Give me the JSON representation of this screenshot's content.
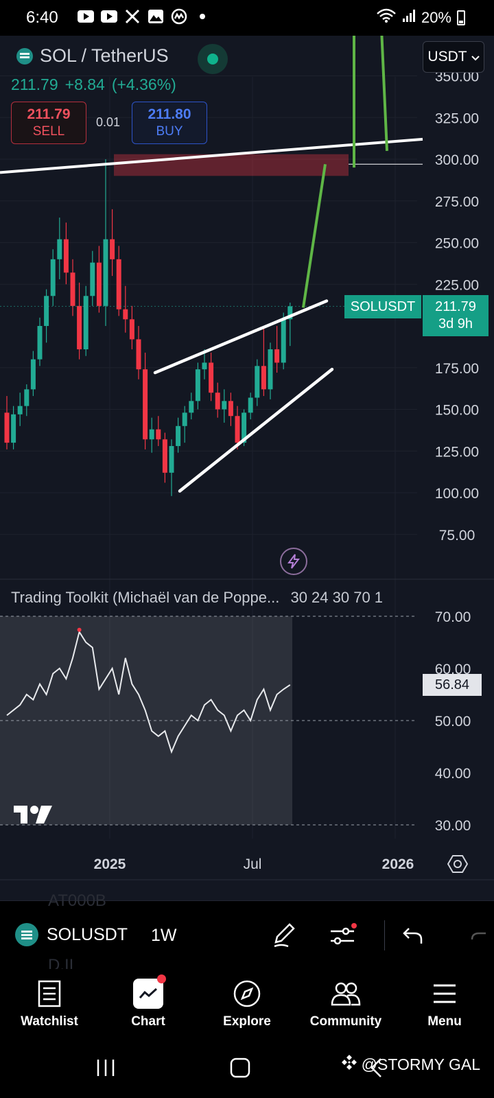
{
  "status_bar": {
    "time": "6:40",
    "battery": "20%",
    "left_icons": [
      "youtube-icon",
      "youtube-icon",
      "x-icon",
      "gallery-icon",
      "coinmarketcap-icon",
      "dot-icon"
    ],
    "right_icons": [
      "wifi-icon",
      "signal-icon",
      "battery-icon"
    ]
  },
  "header": {
    "symbol_title": "SOL / TetherUS",
    "last_price": "211.79",
    "change": "+8.84",
    "change_pct": "(+4.36%)",
    "sell_price": "211.79",
    "sell_label": "SELL",
    "buy_price": "211.80",
    "buy_label": "BUY",
    "spread": "0.01",
    "currency": "USDT"
  },
  "price_axis": {
    "ticks": [
      "350.00",
      "325.00",
      "300.00",
      "275.00",
      "250.00",
      "225.00",
      "175.00",
      "150.00",
      "125.00",
      "100.00",
      "75.00"
    ],
    "symbol_tag": "SOLUSDT",
    "current_price": "211.79",
    "countdown": "3d 9h"
  },
  "indicator": {
    "label": "Trading Toolkit (Michaël van de Poppe...",
    "params": "30 24 30 70 1",
    "ticks": [
      "70.00",
      "60.00",
      "50.00",
      "40.00",
      "30.00"
    ],
    "current_value": "56.84"
  },
  "time_axis": {
    "labels": [
      "2025",
      "Jul",
      "2026"
    ]
  },
  "chart_data": [
    {
      "type": "candlestick",
      "title": "SOL / TetherUS",
      "interval": "1W",
      "ylim": [
        75,
        350
      ],
      "last": 211.79,
      "candles": [
        {
          "o": 148,
          "h": 158,
          "l": 126,
          "c": 130
        },
        {
          "o": 130,
          "h": 152,
          "l": 126,
          "c": 147
        },
        {
          "o": 147,
          "h": 160,
          "l": 140,
          "c": 152
        },
        {
          "o": 152,
          "h": 165,
          "l": 146,
          "c": 162
        },
        {
          "o": 162,
          "h": 185,
          "l": 158,
          "c": 180
        },
        {
          "o": 180,
          "h": 205,
          "l": 176,
          "c": 200
        },
        {
          "o": 200,
          "h": 222,
          "l": 190,
          "c": 218
        },
        {
          "o": 218,
          "h": 246,
          "l": 212,
          "c": 240
        },
        {
          "o": 240,
          "h": 265,
          "l": 228,
          "c": 252
        },
        {
          "o": 252,
          "h": 262,
          "l": 225,
          "c": 232
        },
        {
          "o": 232,
          "h": 240,
          "l": 206,
          "c": 212
        },
        {
          "o": 212,
          "h": 226,
          "l": 180,
          "c": 186
        },
        {
          "o": 186,
          "h": 224,
          "l": 182,
          "c": 218
        },
        {
          "o": 218,
          "h": 245,
          "l": 212,
          "c": 238
        },
        {
          "o": 238,
          "h": 248,
          "l": 208,
          "c": 212
        },
        {
          "o": 212,
          "h": 300,
          "l": 200,
          "c": 252
        },
        {
          "o": 252,
          "h": 270,
          "l": 230,
          "c": 240
        },
        {
          "o": 240,
          "h": 248,
          "l": 206,
          "c": 210
        },
        {
          "o": 210,
          "h": 224,
          "l": 196,
          "c": 204
        },
        {
          "o": 204,
          "h": 212,
          "l": 186,
          "c": 192
        },
        {
          "o": 192,
          "h": 200,
          "l": 168,
          "c": 174
        },
        {
          "o": 174,
          "h": 184,
          "l": 126,
          "c": 132
        },
        {
          "o": 132,
          "h": 145,
          "l": 124,
          "c": 138
        },
        {
          "o": 138,
          "h": 146,
          "l": 128,
          "c": 132
        },
        {
          "o": 132,
          "h": 136,
          "l": 106,
          "c": 112
        },
        {
          "o": 112,
          "h": 132,
          "l": 98,
          "c": 128
        },
        {
          "o": 128,
          "h": 145,
          "l": 124,
          "c": 140
        },
        {
          "o": 140,
          "h": 152,
          "l": 130,
          "c": 148
        },
        {
          "o": 148,
          "h": 160,
          "l": 144,
          "c": 155
        },
        {
          "o": 155,
          "h": 178,
          "l": 150,
          "c": 174
        },
        {
          "o": 174,
          "h": 186,
          "l": 168,
          "c": 178
        },
        {
          "o": 178,
          "h": 184,
          "l": 155,
          "c": 160
        },
        {
          "o": 160,
          "h": 166,
          "l": 145,
          "c": 150
        },
        {
          "o": 150,
          "h": 162,
          "l": 142,
          "c": 155
        },
        {
          "o": 155,
          "h": 160,
          "l": 140,
          "c": 146
        },
        {
          "o": 146,
          "h": 152,
          "l": 126,
          "c": 130
        },
        {
          "o": 130,
          "h": 150,
          "l": 128,
          "c": 148
        },
        {
          "o": 148,
          "h": 160,
          "l": 144,
          "c": 157
        },
        {
          "o": 157,
          "h": 180,
          "l": 152,
          "c": 176
        },
        {
          "o": 176,
          "h": 200,
          "l": 158,
          "c": 162
        },
        {
          "o": 162,
          "h": 190,
          "l": 156,
          "c": 186
        },
        {
          "o": 186,
          "h": 200,
          "l": 172,
          "c": 178
        },
        {
          "o": 178,
          "h": 208,
          "l": 174,
          "c": 204
        },
        {
          "o": 204,
          "h": 214,
          "l": 188,
          "c": 211.79
        }
      ]
    },
    {
      "type": "line",
      "title": "Trading Toolkit (Michaël van de Poppe...",
      "ylim": [
        30,
        70
      ],
      "values": [
        51,
        52,
        53,
        55,
        54,
        57,
        55,
        59,
        60,
        58,
        62,
        67,
        65,
        64,
        56,
        58,
        60,
        55,
        62,
        57,
        55,
        52,
        48,
        47,
        48,
        44,
        47,
        49,
        51,
        50,
        53,
        54,
        52,
        51,
        48,
        51,
        52,
        50,
        54,
        56,
        52,
        55,
        56,
        56.84
      ]
    }
  ]
}
